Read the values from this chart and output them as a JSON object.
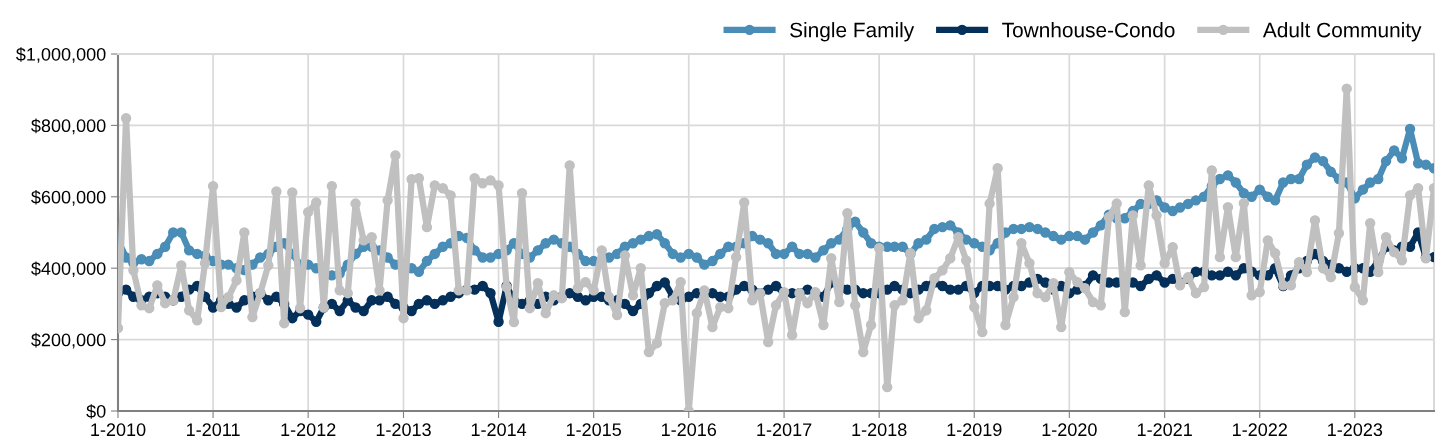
{
  "chart_data": {
    "type": "line",
    "x": [
      "2010-01",
      "2010-02",
      "2010-03",
      "2010-04",
      "2010-05",
      "2010-06",
      "2010-07",
      "2010-08",
      "2010-09",
      "2010-10",
      "2010-11",
      "2010-12",
      "2011-01",
      "2011-02",
      "2011-03",
      "2011-04",
      "2011-05",
      "2011-06",
      "2011-07",
      "2011-08",
      "2011-09",
      "2011-10",
      "2011-11",
      "2011-12",
      "2012-01",
      "2012-02",
      "2012-03",
      "2012-04",
      "2012-05",
      "2012-06",
      "2012-07",
      "2012-08",
      "2012-09",
      "2012-10",
      "2012-11",
      "2012-12",
      "2013-01",
      "2013-02",
      "2013-03",
      "2013-04",
      "2013-05",
      "2013-06",
      "2013-07",
      "2013-08",
      "2013-09",
      "2013-10",
      "2013-11",
      "2013-12",
      "2014-01",
      "2014-02",
      "2014-03",
      "2014-04",
      "2014-05",
      "2014-06",
      "2014-07",
      "2014-08",
      "2014-09",
      "2014-10",
      "2014-11",
      "2014-12",
      "2015-01",
      "2015-02",
      "2015-03",
      "2015-04",
      "2015-05",
      "2015-06",
      "2015-07",
      "2015-08",
      "2015-09",
      "2015-10",
      "2015-11",
      "2015-12",
      "2016-01",
      "2016-02",
      "2016-03",
      "2016-04",
      "2016-05",
      "2016-06",
      "2016-07",
      "2016-08",
      "2016-09",
      "2016-10",
      "2016-11",
      "2016-12",
      "2017-01",
      "2017-02",
      "2017-03",
      "2017-04",
      "2017-05",
      "2017-06",
      "2017-07",
      "2017-08",
      "2017-09",
      "2017-10",
      "2017-11",
      "2017-12",
      "2018-01",
      "2018-02",
      "2018-03",
      "2018-04",
      "2018-05",
      "2018-06",
      "2018-07",
      "2018-08",
      "2018-09",
      "2018-10",
      "2018-11",
      "2018-12",
      "2019-01",
      "2019-02",
      "2019-03",
      "2019-04",
      "2019-05",
      "2019-06",
      "2019-07",
      "2019-08",
      "2019-09",
      "2019-10",
      "2019-11",
      "2019-12",
      "2020-01",
      "2020-02",
      "2020-03",
      "2020-04",
      "2020-05",
      "2020-06",
      "2020-07",
      "2020-08",
      "2020-09",
      "2020-10",
      "2020-11",
      "2020-12",
      "2021-01",
      "2021-02",
      "2021-03",
      "2021-04",
      "2021-05",
      "2021-06",
      "2021-07",
      "2021-08",
      "2021-09",
      "2021-10",
      "2021-11",
      "2021-12",
      "2022-01",
      "2022-02",
      "2022-03",
      "2022-04",
      "2022-05",
      "2022-06",
      "2022-07",
      "2022-08",
      "2022-09",
      "2022-10",
      "2022-11",
      "2022-12",
      "2023-01",
      "2023-02",
      "2023-03",
      "2023-04",
      "2023-05",
      "2023-06",
      "2023-07",
      "2023-08",
      "2023-09",
      "2023-10",
      "2023-11"
    ],
    "xlim": [
      "2010-01",
      "2023-11"
    ],
    "xticks": [
      {
        "value": "2010-01",
        "label": "1-2010"
      },
      {
        "value": "2011-01",
        "label": "1-2011"
      },
      {
        "value": "2012-01",
        "label": "1-2012"
      },
      {
        "value": "2013-01",
        "label": "1-2013"
      },
      {
        "value": "2014-01",
        "label": "1-2014"
      },
      {
        "value": "2015-01",
        "label": "1-2015"
      },
      {
        "value": "2016-01",
        "label": "1-2016"
      },
      {
        "value": "2017-01",
        "label": "1-2017"
      },
      {
        "value": "2018-01",
        "label": "1-2018"
      },
      {
        "value": "2019-01",
        "label": "1-2019"
      },
      {
        "value": "2020-01",
        "label": "1-2020"
      },
      {
        "value": "2021-01",
        "label": "1-2021"
      },
      {
        "value": "2022-01",
        "label": "1-2022"
      },
      {
        "value": "2023-01",
        "label": "1-2023"
      }
    ],
    "ylim": [
      0,
      1000000
    ],
    "yticks": [
      {
        "value": 0,
        "label": "$0"
      },
      {
        "value": 200000,
        "label": "$200,000"
      },
      {
        "value": 400000,
        "label": "$400,000"
      },
      {
        "value": 600000,
        "label": "$600,000"
      },
      {
        "value": 800000,
        "label": "$800,000"
      },
      {
        "value": 1000000,
        "label": "$1,000,000"
      }
    ],
    "grid": true,
    "legend": "top right",
    "marker": "circle",
    "line_style": "solid",
    "series": [
      {
        "name": "Single Family",
        "color": "#4a8db7",
        "values": [
          479000,
          430000,
          415000,
          425000,
          420000,
          440000,
          460000,
          500000,
          500000,
          450000,
          440000,
          435000,
          420000,
          410000,
          410000,
          400000,
          395000,
          410000,
          430000,
          440000,
          460000,
          470000,
          440000,
          410000,
          410000,
          400000,
          390000,
          380000,
          385000,
          410000,
          440000,
          460000,
          460000,
          450000,
          430000,
          410000,
          410000,
          400000,
          390000,
          420000,
          440000,
          460000,
          470000,
          490000,
          485000,
          450000,
          430000,
          430000,
          440000,
          450000,
          470000,
          440000,
          430000,
          450000,
          470000,
          480000,
          470000,
          460000,
          440000,
          420000,
          420000,
          420000,
          430000,
          440000,
          460000,
          470000,
          480000,
          490000,
          495000,
          470000,
          440000,
          430000,
          440000,
          430000,
          410000,
          420000,
          440000,
          460000,
          460000,
          470000,
          490000,
          480000,
          470000,
          440000,
          440000,
          460000,
          440000,
          440000,
          430000,
          450000,
          470000,
          480000,
          510000,
          530000,
          500000,
          470000,
          460000,
          460000,
          460000,
          460000,
          440000,
          470000,
          480000,
          510000,
          515000,
          520000,
          500000,
          480000,
          470000,
          460000,
          450000,
          470000,
          500000,
          510000,
          510000,
          515000,
          510000,
          500000,
          490000,
          480000,
          490000,
          490000,
          480000,
          500000,
          520000,
          550000,
          540000,
          540000,
          560000,
          580000,
          580000,
          590000,
          570000,
          560000,
          570000,
          580000,
          590000,
          600000,
          630000,
          650000,
          660000,
          640000,
          610000,
          600000,
          620000,
          600000,
          590000,
          640000,
          650000,
          650000,
          690000,
          710000,
          700000,
          670000,
          650000,
          640000,
          596000,
          620000,
          640000,
          650000,
          700000,
          730000,
          708000,
          790000,
          694000,
          690000,
          680000
        ]
      },
      {
        "name": "Townhouse-Condo",
        "color": "#04305a",
        "values": [
          330000,
          340000,
          320000,
          310000,
          320000,
          330000,
          320000,
          310000,
          320000,
          340000,
          350000,
          320000,
          290000,
          310000,
          300000,
          290000,
          310000,
          320000,
          330000,
          310000,
          320000,
          300000,
          260000,
          280000,
          270000,
          250000,
          290000,
          300000,
          280000,
          310000,
          290000,
          280000,
          310000,
          310000,
          320000,
          300000,
          290000,
          280000,
          300000,
          310000,
          300000,
          310000,
          320000,
          330000,
          340000,
          340000,
          350000,
          330000,
          250000,
          350000,
          310000,
          300000,
          310000,
          300000,
          320000,
          310000,
          320000,
          330000,
          320000,
          310000,
          320000,
          320000,
          310000,
          310000,
          300000,
          280000,
          300000,
          330000,
          350000,
          360000,
          320000,
          310000,
          320000,
          330000,
          330000,
          330000,
          320000,
          320000,
          340000,
          350000,
          340000,
          330000,
          340000,
          350000,
          330000,
          330000,
          330000,
          340000,
          330000,
          320000,
          360000,
          350000,
          340000,
          340000,
          330000,
          330000,
          330000,
          340000,
          350000,
          340000,
          330000,
          340000,
          350000,
          360000,
          350000,
          340000,
          340000,
          350000,
          330000,
          350000,
          350000,
          350000,
          340000,
          350000,
          350000,
          360000,
          370000,
          360000,
          340000,
          350000,
          330000,
          340000,
          350000,
          380000,
          370000,
          360000,
          360000,
          370000,
          360000,
          350000,
          370000,
          380000,
          360000,
          370000,
          360000,
          370000,
          390000,
          390000,
          380000,
          380000,
          390000,
          380000,
          400000,
          390000,
          380000,
          380000,
          400000,
          350000,
          380000,
          400000,
          420000,
          440000,
          420000,
          410000,
          400000,
          390000,
          400000,
          400000,
          390000,
          420000,
          460000,
          450000,
          460000,
          460000,
          500000,
          430000,
          431000
        ]
      },
      {
        "name": "Adult Community",
        "color": "#c0c0c0",
        "values": [
          232000,
          820000,
          394000,
          296000,
          288000,
          352000,
          302000,
          310000,
          408000,
          282000,
          254000,
          414000,
          630000,
          291000,
          319000,
          366000,
          500000,
          263000,
          330000,
          408000,
          615000,
          246000,
          612000,
          288000,
          557000,
          584000,
          290000,
          630000,
          338000,
          330000,
          581000,
          478000,
          487000,
          338000,
          590000,
          716000,
          260000,
          649000,
          652000,
          515000,
          632000,
          624000,
          604000,
          338000,
          338000,
          652000,
          638000,
          646000,
          632000,
          347000,
          249000,
          610000,
          288000,
          358000,
          274000,
          324000,
          316000,
          688000,
          344000,
          361000,
          338000,
          450000,
          319000,
          269000,
          436000,
          324000,
          400000,
          165000,
          190000,
          302000,
          310000,
          361000,
          0,
          274000,
          338000,
          235000,
          291000,
          288000,
          431000,
          584000,
          310000,
          330000,
          193000,
          296000,
          333000,
          213000,
          330000,
          302000,
          333000,
          241000,
          428000,
          305000,
          554000,
          296000,
          165000,
          241000,
          456000,
          67000,
          296000,
          310000,
          442000,
          260000,
          282000,
          372000,
          394000,
          428000,
          487000,
          422000,
          291000,
          221000,
          581000,
          680000,
          241000,
          319000,
          470000,
          414000,
          330000,
          319000,
          358000,
          235000,
          389000,
          361000,
          344000,
          305000,
          296000,
          543000,
          581000,
          277000,
          548000,
          408000,
          632000,
          548000,
          414000,
          459000,
          352000,
          375000,
          330000,
          347000,
          674000,
          431000,
          571000,
          431000,
          582000,
          324000,
          333000,
          478000,
          442000,
          352000,
          352000,
          417000,
          389000,
          534000,
          400000,
          375000,
          498000,
          903000,
          347000,
          310000,
          526000,
          389000,
          487000,
          445000,
          422000,
          604000,
          624000,
          428000,
          624000
        ]
      }
    ]
  }
}
